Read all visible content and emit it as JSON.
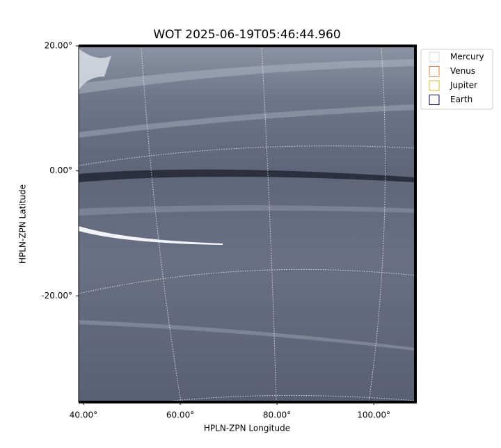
{
  "chart_data": {
    "type": "image",
    "title": "WOT 2025-06-19T05:46:44.960",
    "xlabel": "HPLN-ZPN Longitude",
    "ylabel": "HPLN-ZPN Latitude",
    "xlim": [
      39,
      108.6
    ],
    "ylim": [
      -37,
      20
    ],
    "xticks": [
      {
        "value": 40,
        "label": "40.00°"
      },
      {
        "value": 60,
        "label": "60.00°"
      },
      {
        "value": 80,
        "label": "80.00°"
      },
      {
        "value": 100,
        "label": "100.00°"
      }
    ],
    "yticks": [
      {
        "value": 20,
        "label": "20.00°"
      },
      {
        "value": 0,
        "label": "0.00°"
      },
      {
        "value": -20,
        "label": "-20.00°"
      }
    ],
    "legend": [
      {
        "name": "Mercury",
        "color": "#d9d9d9"
      },
      {
        "name": "Venus",
        "color": "#e07b39"
      },
      {
        "name": "Jupiter",
        "color": "#e6b325"
      },
      {
        "name": "Earth",
        "color": "#000080"
      }
    ],
    "legend_position": "upper right outside"
  }
}
